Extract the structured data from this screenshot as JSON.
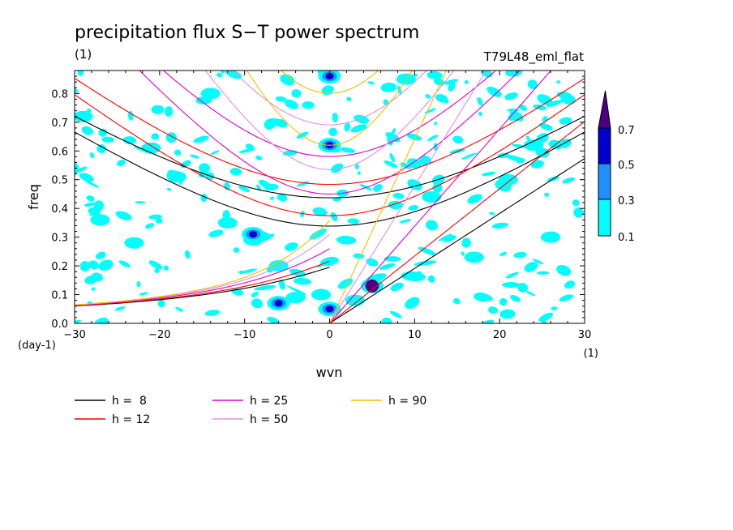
{
  "chart_data": {
    "type": "heatmap",
    "title": "precipitation flux S−T power spectrum",
    "units_label": "(1)",
    "experiment": "T79L48_eml_flat",
    "xlabel": "wvn",
    "ylabel": "freq",
    "x_unit": "(1)",
    "y_unit": "(day-1)",
    "xlim": [
      -30,
      30
    ],
    "ylim": [
      0,
      0.88
    ],
    "x_ticks": [
      "−30",
      "−20",
      "−10",
      "0",
      "10",
      "20",
      "30"
    ],
    "y_ticks": [
      "0.0",
      "0.1",
      "0.2",
      "0.3",
      "0.4",
      "0.5",
      "0.6",
      "0.7",
      "0.8"
    ],
    "colorbar": {
      "levels": [
        "0.1",
        "0.3",
        "0.5",
        "0.7"
      ],
      "colors": [
        "#00ffff",
        "#1e90ff",
        "#0000cd",
        "#4b0082"
      ]
    },
    "dispersion_curves": [
      {
        "label": "h =  8",
        "h": 8,
        "color": "#000000"
      },
      {
        "label": "h = 12",
        "h": 12,
        "color": "#ff0000"
      },
      {
        "label": "h = 25",
        "h": 25,
        "color": "#e000c0"
      },
      {
        "label": "h = 50",
        "h": 50,
        "color": "#e090e0"
      },
      {
        "label": "h = 90",
        "h": 90,
        "color": "#f0c000"
      }
    ],
    "power_peaks": [
      {
        "wvn": 5,
        "freq": 0.13,
        "level": 0.7
      },
      {
        "wvn": 0,
        "freq": 0.62,
        "level": 0.5
      },
      {
        "wvn": 0,
        "freq": 0.05,
        "level": 0.5
      },
      {
        "wvn": 0,
        "freq": 0.86,
        "level": 0.5
      },
      {
        "wvn": -6,
        "freq": 0.07,
        "level": 0.5
      },
      {
        "wvn": -9,
        "freq": 0.31,
        "level": 0.5
      }
    ]
  }
}
